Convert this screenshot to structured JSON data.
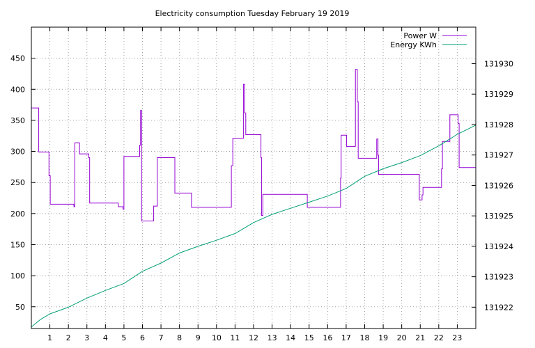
{
  "chart_data": {
    "type": "line",
    "title": "Electricity consumption Tuesday February 19 2019",
    "xlabel": "",
    "ylabel": "",
    "y2label": "",
    "xlim": [
      0,
      24
    ],
    "ylim": [
      15,
      500
    ],
    "y2lim": [
      131921.3,
      131931.2
    ],
    "x_ticks": [
      1,
      2,
      3,
      4,
      5,
      6,
      7,
      8,
      9,
      10,
      11,
      12,
      13,
      14,
      15,
      16,
      17,
      18,
      19,
      20,
      21,
      22,
      23
    ],
    "y_ticks": [
      50,
      100,
      150,
      200,
      250,
      300,
      350,
      400,
      450
    ],
    "y2_ticks": [
      131922,
      131923,
      131924,
      131925,
      131926,
      131927,
      131928,
      131929,
      131930
    ],
    "grid": true,
    "legend_position": "top-right",
    "series": [
      {
        "name": "Power W",
        "axis": "left",
        "color": "#9400d3",
        "points": [
          [
            0,
            370
          ],
          [
            0.4,
            370
          ],
          [
            0.4,
            299
          ],
          [
            0.95,
            299
          ],
          [
            0.95,
            261
          ],
          [
            1.02,
            261
          ],
          [
            1.02,
            215
          ],
          [
            2.3,
            215
          ],
          [
            2.3,
            211
          ],
          [
            2.35,
            211
          ],
          [
            2.35,
            314
          ],
          [
            2.6,
            314
          ],
          [
            2.6,
            296
          ],
          [
            3.1,
            296
          ],
          [
            3.1,
            290
          ],
          [
            3.15,
            290
          ],
          [
            3.15,
            217
          ],
          [
            4.7,
            217
          ],
          [
            4.7,
            211
          ],
          [
            4.95,
            211
          ],
          [
            4.95,
            207
          ],
          [
            5.0,
            207
          ],
          [
            5.0,
            292
          ],
          [
            5.85,
            292
          ],
          [
            5.85,
            310
          ],
          [
            5.9,
            310
          ],
          [
            5.9,
            366
          ],
          [
            5.95,
            366
          ],
          [
            5.95,
            188
          ],
          [
            6.6,
            188
          ],
          [
            6.6,
            212
          ],
          [
            6.8,
            212
          ],
          [
            6.8,
            290
          ],
          [
            7.75,
            290
          ],
          [
            7.75,
            233
          ],
          [
            8.65,
            233
          ],
          [
            8.65,
            210
          ],
          [
            10.8,
            210
          ],
          [
            10.8,
            277
          ],
          [
            10.88,
            277
          ],
          [
            10.88,
            321
          ],
          [
            11.45,
            321
          ],
          [
            11.45,
            408
          ],
          [
            11.52,
            408
          ],
          [
            11.52,
            362
          ],
          [
            11.58,
            362
          ],
          [
            11.58,
            327
          ],
          [
            12.4,
            327
          ],
          [
            12.4,
            290
          ],
          [
            12.43,
            290
          ],
          [
            12.43,
            197
          ],
          [
            12.5,
            197
          ],
          [
            12.5,
            231
          ],
          [
            14.9,
            231
          ],
          [
            14.9,
            210
          ],
          [
            16.7,
            210
          ],
          [
            16.7,
            257
          ],
          [
            16.73,
            257
          ],
          [
            16.73,
            326
          ],
          [
            17.02,
            326
          ],
          [
            17.02,
            308
          ],
          [
            17.5,
            308
          ],
          [
            17.5,
            432
          ],
          [
            17.6,
            432
          ],
          [
            17.6,
            380
          ],
          [
            17.65,
            380
          ],
          [
            17.65,
            289
          ],
          [
            18.65,
            289
          ],
          [
            18.65,
            320
          ],
          [
            18.72,
            320
          ],
          [
            18.72,
            294
          ],
          [
            18.75,
            294
          ],
          [
            18.75,
            263
          ],
          [
            20.95,
            263
          ],
          [
            20.95,
            222
          ],
          [
            21.1,
            222
          ],
          [
            21.1,
            230
          ],
          [
            21.15,
            230
          ],
          [
            21.15,
            242
          ],
          [
            22.15,
            242
          ],
          [
            22.15,
            272
          ],
          [
            22.2,
            272
          ],
          [
            22.2,
            316
          ],
          [
            22.6,
            316
          ],
          [
            22.6,
            359
          ],
          [
            23.05,
            359
          ],
          [
            23.05,
            345
          ],
          [
            23.1,
            345
          ],
          [
            23.1,
            274
          ],
          [
            24,
            274
          ]
        ]
      },
      {
        "name": "Energy KWh",
        "axis": "right",
        "color": "#009e73",
        "points": [
          [
            0,
            131921.35
          ],
          [
            0.5,
            131921.6
          ],
          [
            1,
            131921.78
          ],
          [
            2,
            131922.0
          ],
          [
            3,
            131922.3
          ],
          [
            4,
            131922.55
          ],
          [
            5,
            131922.78
          ],
          [
            6,
            131923.18
          ],
          [
            7,
            131923.45
          ],
          [
            8,
            131923.78
          ],
          [
            9,
            131924.0
          ],
          [
            10,
            131924.2
          ],
          [
            11,
            131924.42
          ],
          [
            12,
            131924.78
          ],
          [
            13,
            131925.05
          ],
          [
            14,
            131925.25
          ],
          [
            15,
            131925.45
          ],
          [
            16,
            131925.65
          ],
          [
            17,
            131925.9
          ],
          [
            18,
            131926.3
          ],
          [
            19,
            131926.55
          ],
          [
            20,
            131926.75
          ],
          [
            21,
            131926.98
          ],
          [
            22,
            131927.3
          ],
          [
            23,
            131927.68
          ],
          [
            24,
            131927.98
          ]
        ]
      }
    ]
  }
}
